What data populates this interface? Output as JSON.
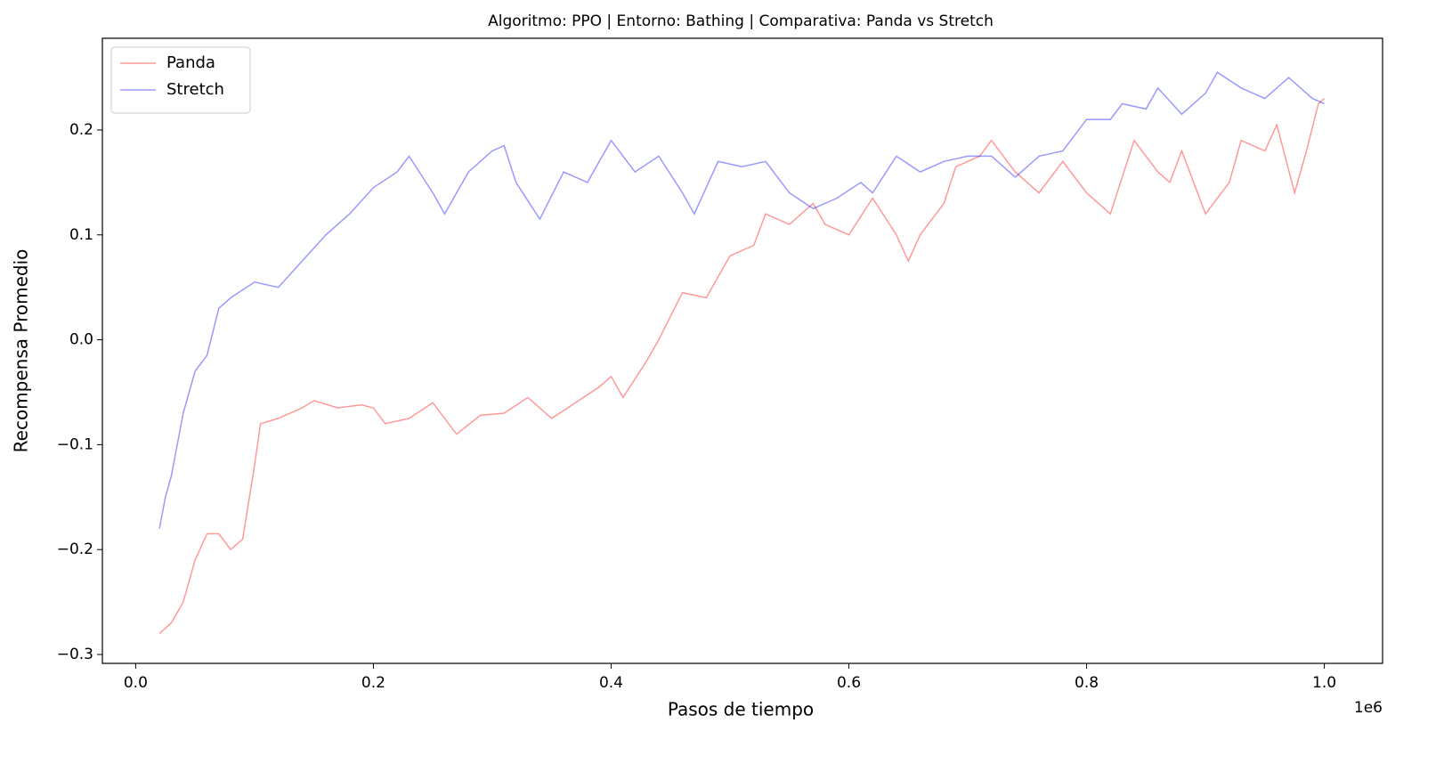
{
  "chart_data": {
    "type": "line",
    "title": "Algoritmo: PPO | Entorno: Bathing | Comparativa: Panda vs Stretch",
    "x_label": "Pasos de tiempo",
    "y_label": "Recompensa Promedio",
    "x_offset_label": "1e6",
    "xlim": [
      -0.028,
      1.049
    ],
    "ylim": [
      -0.3085,
      0.2874
    ],
    "xticks": [
      {
        "value": 0,
        "label": "0.0"
      },
      0.2,
      0.4,
      0.6,
      0.8,
      {
        "value": 1,
        "label": "1.0"
      }
    ],
    "yticks": [
      {
        "value": -0.3,
        "label": "−0.3"
      },
      {
        "value": -0.2,
        "label": "−0.2"
      },
      {
        "value": -0.1,
        "label": "−0.1"
      },
      {
        "value": 0,
        "label": "0.0"
      },
      0.1,
      0.2
    ],
    "legend": "upper left",
    "alpha": 0.4,
    "series": [
      {
        "name": "Panda",
        "color": "#ff0000",
        "x": [
          0.02,
          0.03,
          0.04,
          0.05,
          0.06,
          0.07,
          0.08,
          0.09,
          0.1,
          0.105,
          0.12,
          0.14,
          0.15,
          0.17,
          0.19,
          0.2,
          0.21,
          0.23,
          0.25,
          0.27,
          0.29,
          0.31,
          0.33,
          0.35,
          0.37,
          0.39,
          0.4,
          0.41,
          0.43,
          0.44,
          0.46,
          0.48,
          0.5,
          0.52,
          0.53,
          0.55,
          0.57,
          0.58,
          0.6,
          0.62,
          0.64,
          0.65,
          0.66,
          0.68,
          0.69,
          0.71,
          0.72,
          0.74,
          0.76,
          0.78,
          0.8,
          0.82,
          0.84,
          0.86,
          0.87,
          0.88,
          0.9,
          0.92,
          0.93,
          0.95,
          0.96,
          0.975,
          0.985,
          0.995,
          1.0
        ],
        "values": [
          -0.28,
          -0.27,
          -0.25,
          -0.21,
          -0.185,
          -0.185,
          -0.2,
          -0.19,
          -0.12,
          -0.08,
          -0.075,
          -0.065,
          -0.058,
          -0.065,
          -0.062,
          -0.065,
          -0.08,
          -0.075,
          -0.06,
          -0.09,
          -0.072,
          -0.07,
          -0.055,
          -0.075,
          -0.06,
          -0.045,
          -0.035,
          -0.055,
          -0.02,
          0.0,
          0.045,
          0.04,
          0.08,
          0.09,
          0.12,
          0.11,
          0.13,
          0.11,
          0.1,
          0.135,
          0.1,
          0.075,
          0.1,
          0.13,
          0.165,
          0.175,
          0.19,
          0.16,
          0.14,
          0.17,
          0.14,
          0.12,
          0.19,
          0.16,
          0.15,
          0.18,
          0.12,
          0.15,
          0.19,
          0.18,
          0.205,
          0.14,
          0.18,
          0.225,
          0.23
        ]
      },
      {
        "name": "Stretch",
        "color": "#0000ff",
        "x": [
          0.02,
          0.025,
          0.03,
          0.04,
          0.05,
          0.06,
          0.07,
          0.08,
          0.1,
          0.12,
          0.14,
          0.16,
          0.18,
          0.2,
          0.22,
          0.23,
          0.25,
          0.26,
          0.28,
          0.3,
          0.31,
          0.32,
          0.34,
          0.36,
          0.38,
          0.4,
          0.42,
          0.44,
          0.46,
          0.47,
          0.49,
          0.51,
          0.53,
          0.55,
          0.57,
          0.59,
          0.61,
          0.62,
          0.64,
          0.66,
          0.68,
          0.7,
          0.72,
          0.74,
          0.76,
          0.78,
          0.8,
          0.82,
          0.83,
          0.85,
          0.86,
          0.88,
          0.9,
          0.91,
          0.93,
          0.95,
          0.97,
          0.99,
          1.0
        ],
        "values": [
          -0.18,
          -0.15,
          -0.13,
          -0.07,
          -0.03,
          -0.015,
          0.03,
          0.04,
          0.055,
          0.05,
          0.075,
          0.1,
          0.12,
          0.145,
          0.16,
          0.175,
          0.14,
          0.12,
          0.16,
          0.18,
          0.185,
          0.15,
          0.115,
          0.16,
          0.15,
          0.19,
          0.16,
          0.175,
          0.14,
          0.12,
          0.17,
          0.165,
          0.17,
          0.14,
          0.125,
          0.135,
          0.15,
          0.14,
          0.175,
          0.16,
          0.17,
          0.175,
          0.175,
          0.155,
          0.175,
          0.18,
          0.21,
          0.21,
          0.225,
          0.22,
          0.24,
          0.215,
          0.235,
          0.255,
          0.24,
          0.23,
          0.25,
          0.23,
          0.225
        ]
      }
    ]
  }
}
